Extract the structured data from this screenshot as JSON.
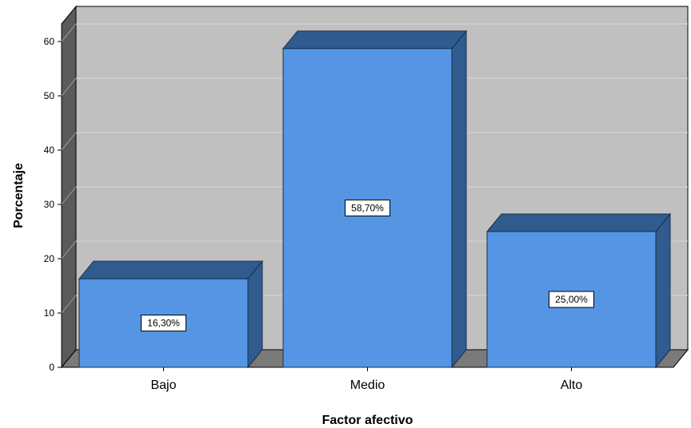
{
  "chart_data": {
    "type": "bar",
    "categories": [
      "Bajo",
      "Medio",
      "Alto"
    ],
    "values": [
      16.3,
      58.7,
      25.0
    ],
    "data_labels": [
      "16,30%",
      "58,70%",
      "25,00%"
    ],
    "title": "",
    "xlabel": "Factor afectivo",
    "ylabel": "Porcentaje",
    "ylim": [
      0,
      65
    ],
    "yticks": [
      0,
      10,
      20,
      30,
      40,
      50,
      60
    ],
    "grid": true,
    "style": "3d",
    "colors": {
      "bar_front": "#5595e4",
      "bar_top": "#2f5b8f",
      "bar_side": "#2f5b8f",
      "plot_back": "#c0c0c0",
      "side_wall": "#5a5a5a",
      "floor": "#7a7a7a",
      "gridline": "#d8d8d8"
    }
  }
}
